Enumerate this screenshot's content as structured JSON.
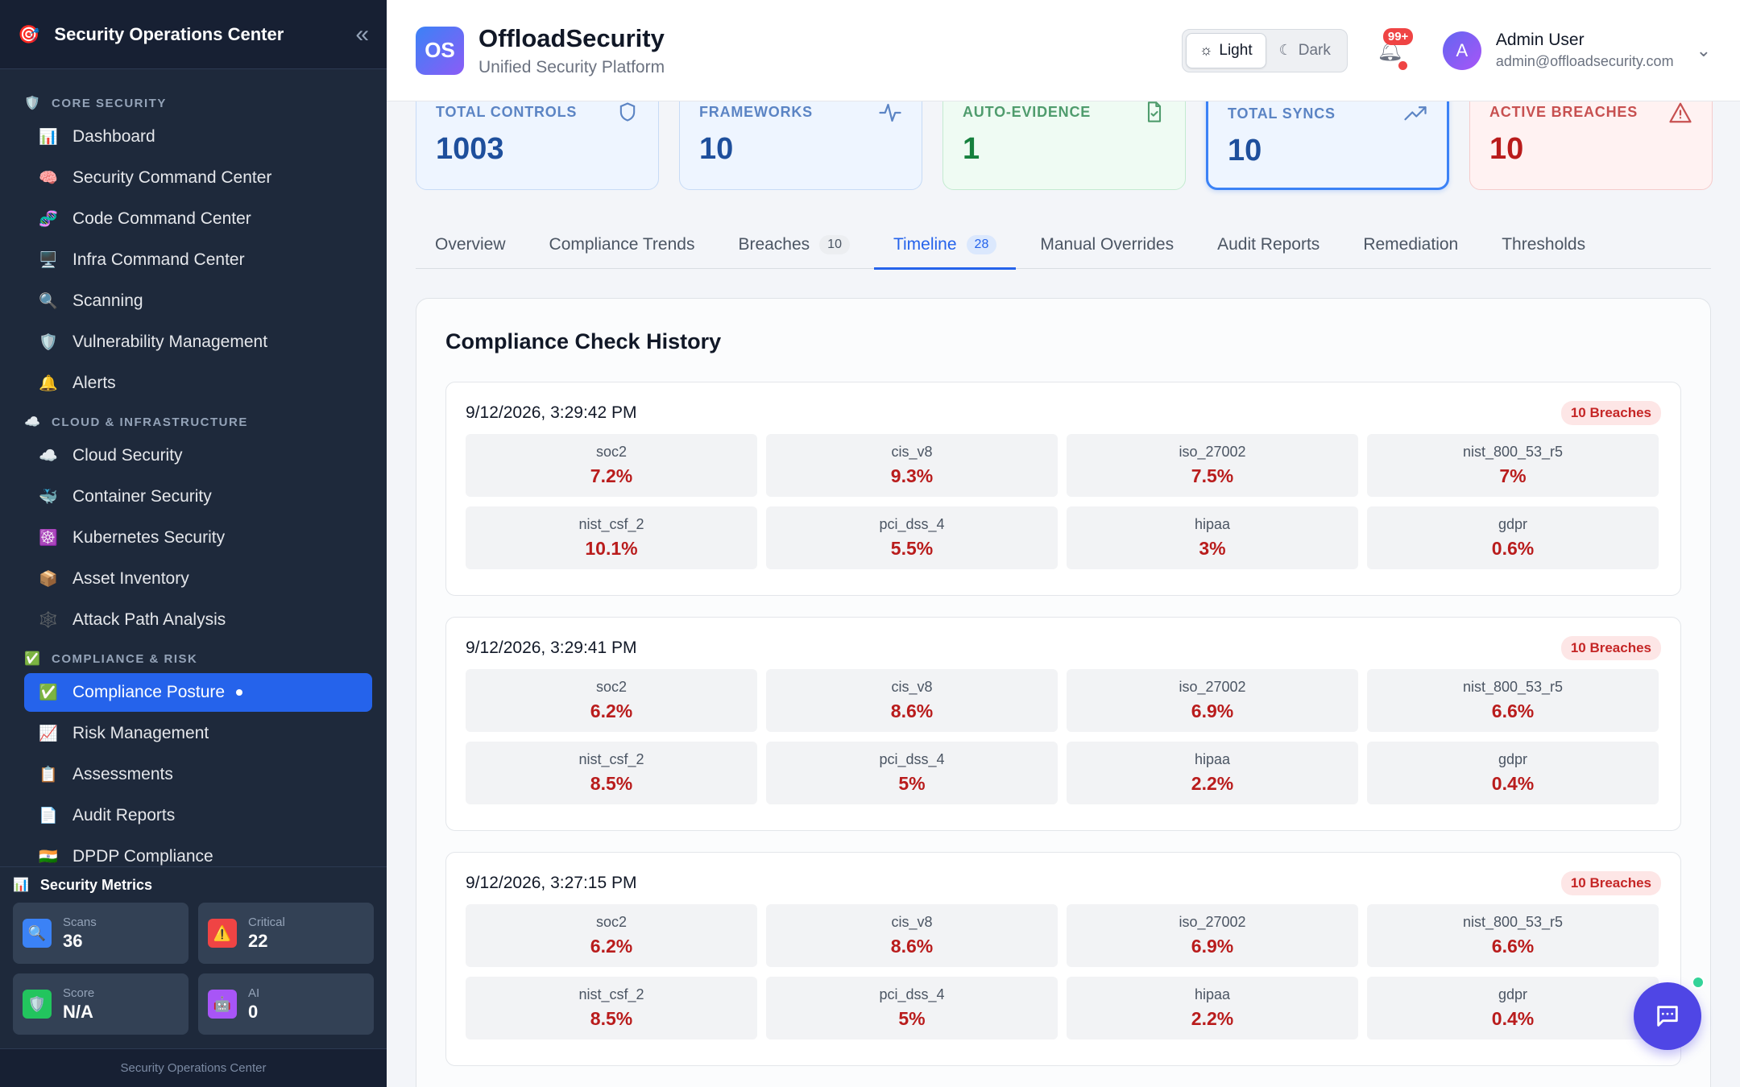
{
  "sidebar": {
    "title": "Security Operations Center",
    "collapse_icon": "double-chevron-left-icon",
    "sections": [
      {
        "label": "CORE SECURITY",
        "icon": "🛡️",
        "items": [
          {
            "label": "Dashboard",
            "icon": "📊"
          },
          {
            "label": "Security Command Center",
            "icon": "🧠"
          },
          {
            "label": "Code Command Center",
            "icon": "🧬"
          },
          {
            "label": "Infra Command Center",
            "icon": "🖥️"
          },
          {
            "label": "Scanning",
            "icon": "🔍"
          },
          {
            "label": "Vulnerability Management",
            "icon": "🛡️"
          },
          {
            "label": "Alerts",
            "icon": "🔔"
          }
        ]
      },
      {
        "label": "CLOUD & INFRASTRUCTURE",
        "icon": "☁️",
        "items": [
          {
            "label": "Cloud Security",
            "icon": "☁️"
          },
          {
            "label": "Container Security",
            "icon": "🐳"
          },
          {
            "label": "Kubernetes Security",
            "icon": "☸️"
          },
          {
            "label": "Asset Inventory",
            "icon": "📦"
          },
          {
            "label": "Attack Path Analysis",
            "icon": "🕸️"
          }
        ]
      },
      {
        "label": "COMPLIANCE & RISK",
        "icon": "✅",
        "items": [
          {
            "label": "Compliance Posture",
            "icon": "✅",
            "active": true
          },
          {
            "label": "Risk Management",
            "icon": "📈"
          },
          {
            "label": "Assessments",
            "icon": "📋"
          },
          {
            "label": "Audit Reports",
            "icon": "📄"
          },
          {
            "label": "DPDP Compliance",
            "icon": "🇮🇳"
          }
        ]
      }
    ],
    "metrics": {
      "title": "Security Metrics",
      "icon": "📊",
      "cards": [
        {
          "label": "Scans",
          "value": "36",
          "icon": "🔍",
          "color": "#3b82f6"
        },
        {
          "label": "Critical",
          "value": "22",
          "icon": "⚠️",
          "color": "#ef4444"
        },
        {
          "label": "Score",
          "value": "N/A",
          "icon": "🛡️",
          "color": "#22c55e"
        },
        {
          "label": "AI",
          "value": "0",
          "icon": "🤖",
          "color": "#a855f7"
        }
      ]
    },
    "footer": "Security Operations Center"
  },
  "header": {
    "badge": "OS",
    "brand": "OffloadSecurity",
    "subtitle": "Unified Security Platform",
    "theme": {
      "light": "Light",
      "dark": "Dark"
    },
    "notifications": "99+",
    "avatar_initial": "A",
    "user_name": "Admin User",
    "user_email": "admin@offloadsecurity.com"
  },
  "stats": [
    {
      "label": "TOTAL CONTROLS",
      "value": "1003",
      "icon": "shield-icon",
      "tone": "blue"
    },
    {
      "label": "FRAMEWORKS",
      "value": "10",
      "icon": "activity-icon",
      "tone": "blue"
    },
    {
      "label": "AUTO-EVIDENCE",
      "value": "1",
      "icon": "file-check-icon",
      "tone": "green"
    },
    {
      "label": "TOTAL SYNCS",
      "value": "10",
      "icon": "trending-up-icon",
      "tone": "blue",
      "selected": true
    },
    {
      "label": "ACTIVE BREACHES",
      "value": "10",
      "icon": "alert-triangle-icon",
      "tone": "red"
    }
  ],
  "tabs": [
    {
      "label": "Overview"
    },
    {
      "label": "Compliance Trends"
    },
    {
      "label": "Breaches",
      "badge": "10"
    },
    {
      "label": "Timeline",
      "badge": "28",
      "active": true
    },
    {
      "label": "Manual Overrides"
    },
    {
      "label": "Audit Reports"
    },
    {
      "label": "Remediation"
    },
    {
      "label": "Thresholds"
    }
  ],
  "history": {
    "title": "Compliance Check History",
    "checks": [
      {
        "time": "9/12/2026, 3:29:42 PM",
        "badge": "10 Breaches",
        "frameworks": [
          {
            "name": "soc2",
            "value": "7.2%"
          },
          {
            "name": "cis_v8",
            "value": "9.3%"
          },
          {
            "name": "iso_27002",
            "value": "7.5%"
          },
          {
            "name": "nist_800_53_r5",
            "value": "7%"
          },
          {
            "name": "nist_csf_2",
            "value": "10.1%"
          },
          {
            "name": "pci_dss_4",
            "value": "5.5%"
          },
          {
            "name": "hipaa",
            "value": "3%"
          },
          {
            "name": "gdpr",
            "value": "0.6%"
          }
        ]
      },
      {
        "time": "9/12/2026, 3:29:41 PM",
        "badge": "10 Breaches",
        "frameworks": [
          {
            "name": "soc2",
            "value": "6.2%"
          },
          {
            "name": "cis_v8",
            "value": "8.6%"
          },
          {
            "name": "iso_27002",
            "value": "6.9%"
          },
          {
            "name": "nist_800_53_r5",
            "value": "6.6%"
          },
          {
            "name": "nist_csf_2",
            "value": "8.5%"
          },
          {
            "name": "pci_dss_4",
            "value": "5%"
          },
          {
            "name": "hipaa",
            "value": "2.2%"
          },
          {
            "name": "gdpr",
            "value": "0.4%"
          }
        ]
      },
      {
        "time": "9/12/2026, 3:27:15 PM",
        "badge": "10 Breaches",
        "frameworks": [
          {
            "name": "soc2",
            "value": "6.2%"
          },
          {
            "name": "cis_v8",
            "value": "8.6%"
          },
          {
            "name": "iso_27002",
            "value": "6.9%"
          },
          {
            "name": "nist_800_53_r5",
            "value": "6.6%"
          },
          {
            "name": "nist_csf_2",
            "value": "8.5%"
          },
          {
            "name": "pci_dss_4",
            "value": "5%"
          },
          {
            "name": "hipaa",
            "value": "2.2%"
          },
          {
            "name": "gdpr",
            "value": "0.4%"
          }
        ]
      }
    ]
  },
  "chat": {
    "icon": "chat-icon"
  }
}
